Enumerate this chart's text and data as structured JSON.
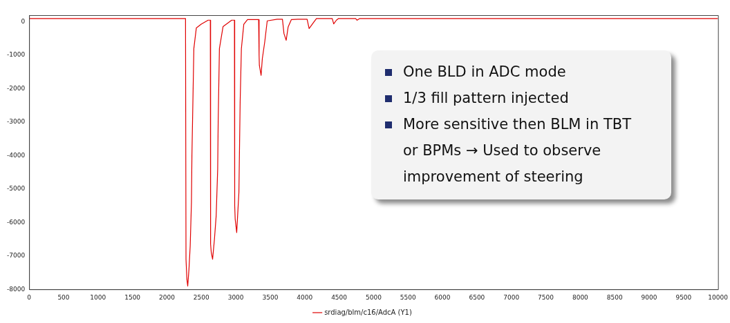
{
  "chart_data": {
    "type": "line",
    "series": [
      {
        "name": "srdiag/blm/c16/AdcA (Y1)",
        "color": "#e00000",
        "x": [
          0,
          1000,
          2000,
          2270,
          2277,
          2290,
          2302,
          2320,
          2338,
          2356,
          2363,
          2391,
          2427,
          2498,
          2598,
          2630,
          2634,
          2644,
          2663,
          2690,
          2715,
          2737,
          2744,
          2762,
          2815,
          2940,
          2980,
          2984,
          2991,
          3013,
          3045,
          3063,
          3081,
          3116,
          3170,
          3331,
          3338,
          3342,
          3367,
          3385,
          3420,
          3456,
          3600,
          3677,
          3681,
          3699,
          3731,
          3760,
          3807,
          3900,
          4020,
          4035,
          4064,
          4135,
          4171,
          4400,
          4421,
          4460,
          4492,
          4740,
          4760,
          4800,
          6000,
          8000,
          10000
        ],
        "values": [
          100,
          100,
          100,
          100,
          -7100,
          -7700,
          -7900,
          -7400,
          -6700,
          -5400,
          -4000,
          -800,
          -180,
          -70,
          50,
          50,
          -6650,
          -6900,
          -7100,
          -6500,
          -5800,
          -4400,
          -3000,
          -800,
          -140,
          50,
          50,
          -5500,
          -5900,
          -6300,
          -5100,
          -2400,
          -800,
          -70,
          70,
          70,
          -1000,
          -1300,
          -1600,
          -1100,
          -600,
          30,
          80,
          80,
          80,
          -350,
          -550,
          -150,
          70,
          80,
          80,
          80,
          -200,
          0,
          100,
          100,
          -60,
          50,
          100,
          100,
          50,
          100,
          100,
          100,
          100
        ]
      }
    ],
    "xlim": [
      0,
      10000
    ],
    "xticks": [
      0,
      500,
      1000,
      1500,
      2000,
      2500,
      3000,
      3500,
      4000,
      4500,
      5000,
      5500,
      6000,
      6500,
      7000,
      7500,
      8000,
      8500,
      9000,
      9500,
      10000
    ],
    "ylim": [
      -8000,
      200
    ],
    "yticks": [
      0,
      -1000,
      -2000,
      -3000,
      -4000,
      -5000,
      -6000,
      -7000,
      -8000
    ],
    "grid": false,
    "legend": "bottom",
    "marker": "none",
    "line_style": "solid",
    "annotations": [
      "One BLD in ADC mode",
      "1/3 fill pattern injected",
      "More sensitive then BLM in TBT or BPMs → Used to observe improvement of steering"
    ]
  }
}
